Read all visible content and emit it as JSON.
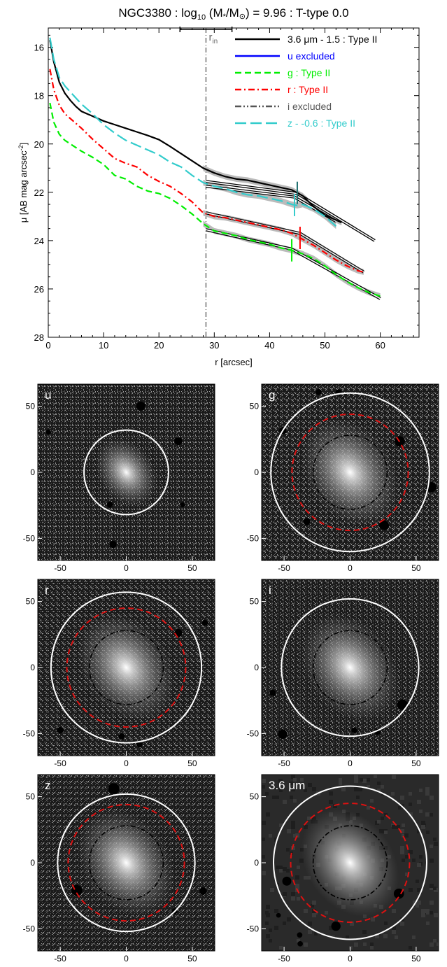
{
  "profile": {
    "title_parts": [
      "NGC3380 : log",
      "10",
      " (M",
      "*",
      "/M",
      "⊙",
      ") = 9.96 : T-type 0.0"
    ],
    "xlabel": "r [arcsec]",
    "ylabel": "μ [AB mag arcsec",
    "ylabel_sup": "-2",
    "ylabel_end": "]",
    "rin_label": "r",
    "rin_sub": "in",
    "legend": [
      {
        "label": "3.6 μm - 1.5 : Type II",
        "color": "#000000",
        "dash": "solid"
      },
      {
        "label": "u excluded",
        "color": "#0000ff",
        "dash": "solid"
      },
      {
        "label": "g : Type II",
        "color": "#00ee00",
        "dash": "dash"
      },
      {
        "label": "r : Type II",
        "color": "#ff0000",
        "dash": "dashdot"
      },
      {
        "label": "i excluded",
        "color": "#555555",
        "dash": "dashdotdot"
      },
      {
        "label": "z - -0.6 : Type II",
        "color": "#33cccc",
        "dash": "longdash"
      }
    ]
  },
  "chart_data": [
    {
      "type": "line",
      "title": "NGC3380 : log10 (M*/M⊙) = 9.96 : T-type 0.0",
      "xlabel": "r [arcsec]",
      "ylabel": "μ [AB mag arcsec-2]",
      "xlim": [
        0,
        67
      ],
      "ylim": [
        28,
        15.2
      ],
      "y_inverted": true,
      "xticks": [
        0,
        10,
        20,
        30,
        40,
        50,
        60
      ],
      "yticks": [
        16,
        18,
        20,
        22,
        24,
        26,
        28
      ],
      "r_in": 28.5,
      "r_in_range": [
        23.8,
        33.2
      ],
      "series": [
        {
          "name": "3.6 μm - 1.5 : Type II",
          "color": "#000000",
          "x": [
            0.3,
            1,
            2,
            3,
            4,
            5,
            6,
            8,
            10,
            12,
            14,
            16,
            18,
            20,
            22,
            24,
            26,
            28,
            30,
            32,
            34,
            36,
            38,
            40,
            42,
            44,
            46,
            48,
            50,
            52,
            53
          ],
          "y": [
            15.7,
            16.6,
            17.45,
            17.9,
            18.2,
            18.45,
            18.65,
            18.85,
            19.05,
            19.2,
            19.35,
            19.5,
            19.65,
            19.82,
            20.1,
            20.4,
            20.7,
            21.0,
            21.2,
            21.35,
            21.45,
            21.5,
            21.6,
            21.7,
            21.8,
            21.9,
            22.15,
            22.6,
            22.95,
            23.15,
            23.25
          ],
          "break_r": 45.0
        },
        {
          "name": "g : Type II",
          "color": "#00ee00",
          "x": [
            0.3,
            1,
            2,
            3,
            4,
            5,
            6,
            8,
            10,
            12,
            14,
            16,
            18,
            20,
            22,
            24,
            26,
            28,
            30,
            32,
            34,
            36,
            38,
            40,
            42,
            44,
            46,
            48,
            50,
            52,
            54,
            56,
            58,
            60
          ],
          "y": [
            18.3,
            19.1,
            19.6,
            19.85,
            20.0,
            20.15,
            20.3,
            20.55,
            20.85,
            21.3,
            21.45,
            21.75,
            21.95,
            22.05,
            22.25,
            22.55,
            22.9,
            23.3,
            23.6,
            23.7,
            23.8,
            23.95,
            24.05,
            24.15,
            24.3,
            24.4,
            24.55,
            24.75,
            25.05,
            25.4,
            25.7,
            25.95,
            26.15,
            26.3
          ],
          "break_r": 44.0
        },
        {
          "name": "r : Type II",
          "color": "#ff0000",
          "x": [
            0.3,
            1,
            2,
            3,
            4,
            5,
            6,
            8,
            10,
            12,
            14,
            16,
            18,
            20,
            22,
            24,
            26,
            28,
            30,
            32,
            34,
            36,
            38,
            40,
            42,
            44,
            46,
            48,
            50,
            52,
            54,
            56,
            57
          ],
          "y": [
            16.9,
            17.75,
            18.4,
            18.75,
            18.95,
            19.15,
            19.35,
            19.8,
            20.2,
            20.6,
            20.8,
            20.95,
            21.3,
            21.55,
            21.75,
            22.05,
            22.4,
            22.85,
            23.0,
            23.05,
            23.15,
            23.25,
            23.35,
            23.45,
            23.55,
            23.7,
            23.95,
            24.2,
            24.5,
            24.8,
            25.05,
            25.25,
            25.3
          ],
          "break_r": 45.5
        },
        {
          "name": "z - -0.6 : Type II",
          "color": "#33cccc",
          "x": [
            0.3,
            1,
            2,
            3,
            4,
            5,
            6,
            8,
            10,
            12,
            14,
            16,
            18,
            20,
            22,
            24,
            26,
            28,
            30,
            32,
            34,
            36,
            38,
            40,
            42,
            44,
            45,
            46,
            48,
            50,
            52
          ],
          "y": [
            15.6,
            16.5,
            17.25,
            17.6,
            17.85,
            18.1,
            18.35,
            18.75,
            19.2,
            19.55,
            19.85,
            20.05,
            20.25,
            20.45,
            20.75,
            20.95,
            21.3,
            21.6,
            21.75,
            21.85,
            22.0,
            22.1,
            22.15,
            22.25,
            22.35,
            22.5,
            22.55,
            22.5,
            22.7,
            23.0,
            23.4
          ],
          "break_r": 44.5
        },
        {
          "name": "3.6 μm fit",
          "color": "#000000",
          "x": [
            28.5,
            45,
            59
          ],
          "y": [
            21.55,
            22.05,
            24.0
          ]
        },
        {
          "name": "z fit",
          "color": "#33cccc",
          "x": [
            28.5,
            44.5,
            52
          ],
          "y": [
            21.75,
            22.2,
            23.2
          ]
        },
        {
          "name": "r fit",
          "color": "#ff0000",
          "x": [
            28.5,
            45.5,
            57
          ],
          "y": [
            22.85,
            23.7,
            25.3
          ]
        },
        {
          "name": "g fit",
          "color": "#00ee00",
          "x": [
            28.5,
            44,
            60
          ],
          "y": [
            23.55,
            24.35,
            26.4
          ]
        }
      ]
    }
  ],
  "panels": [
    {
      "label": "u",
      "label_color": "#ffffff",
      "bg": "noise",
      "circles": [
        {
          "r": 32,
          "style": "white"
        }
      ],
      "xticks": [
        "-50",
        "0",
        "50"
      ],
      "yticks": [
        "50",
        "0",
        "-50"
      ]
    },
    {
      "label": "g",
      "label_color": "#ffffff",
      "bg": "noise",
      "circles": [
        {
          "r": 60,
          "style": "white"
        },
        {
          "r": 44,
          "style": "red"
        },
        {
          "r": 28,
          "style": "black"
        }
      ],
      "xticks": [
        "-50",
        "0",
        "50"
      ],
      "yticks": [
        "50",
        "0",
        "-50"
      ]
    },
    {
      "label": "r",
      "label_color": "#ffffff",
      "bg": "noise",
      "circles": [
        {
          "r": 57,
          "style": "white"
        },
        {
          "r": 45,
          "style": "red"
        },
        {
          "r": 28,
          "style": "black"
        }
      ],
      "xticks": [
        "-50",
        "0",
        "50"
      ],
      "yticks": [
        "50",
        "0",
        "-50"
      ]
    },
    {
      "label": "i",
      "label_color": "#ffffff",
      "bg": "noise",
      "circles": [
        {
          "r": 52,
          "style": "white"
        },
        {
          "r": 28,
          "style": "black"
        }
      ],
      "xticks": [
        "-50",
        "0",
        "50"
      ],
      "yticks": [
        "50",
        "0",
        "-50"
      ]
    },
    {
      "label": "z",
      "label_color": "#ffffff",
      "bg": "noise",
      "circles": [
        {
          "r": 52,
          "style": "white"
        },
        {
          "r": 44,
          "style": "red"
        },
        {
          "r": 28,
          "style": "black"
        }
      ],
      "xticks": [
        "-50",
        "0",
        "50"
      ],
      "yticks": [
        "50",
        "0",
        "-50"
      ]
    },
    {
      "label": "3.6 μm",
      "label_color": "#ffffff",
      "bg": "smooth",
      "circles": [
        {
          "r": 58,
          "style": "white"
        },
        {
          "r": 45,
          "style": "red"
        },
        {
          "r": 28,
          "style": "black"
        }
      ],
      "xticks": [
        "-50",
        "0",
        "50"
      ],
      "yticks": [
        "50",
        "0",
        "-50"
      ]
    }
  ]
}
